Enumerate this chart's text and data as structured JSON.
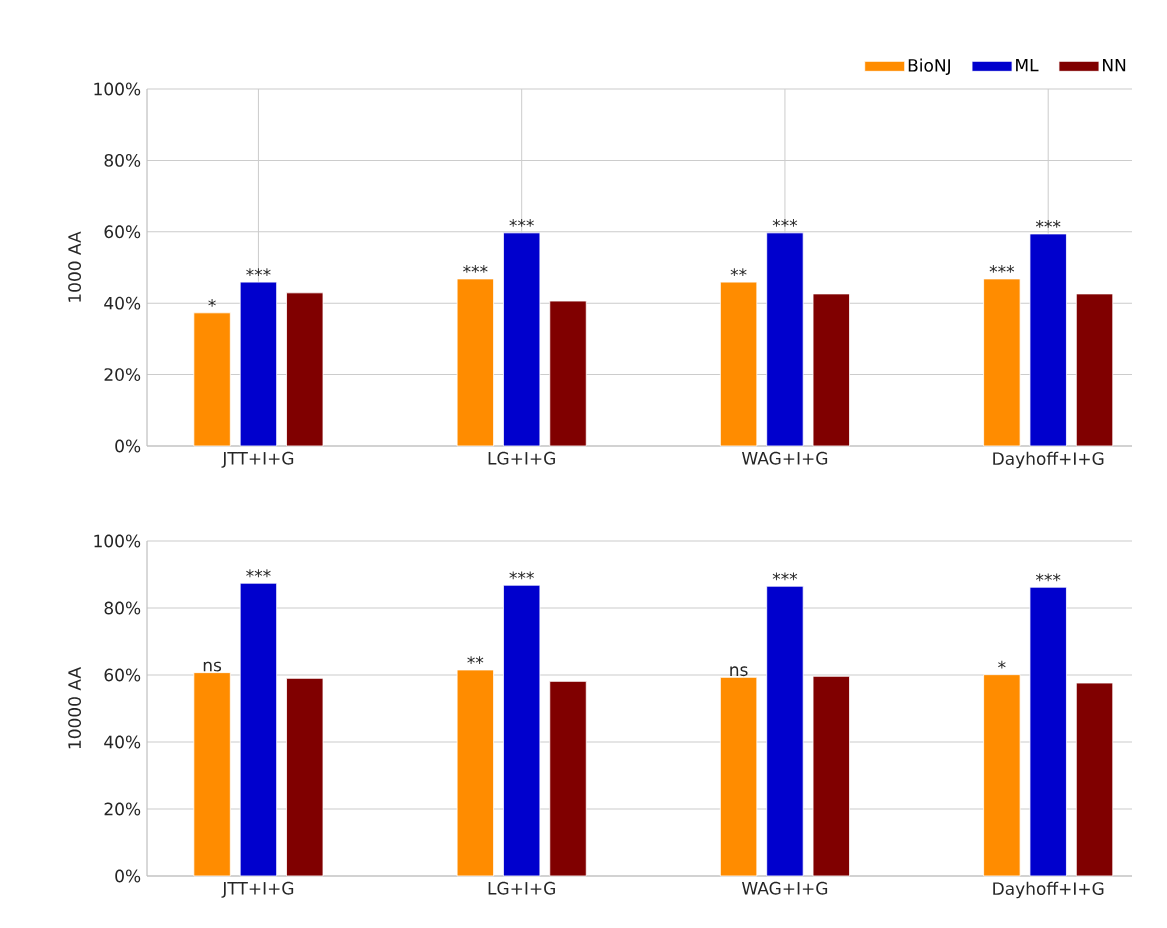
{
  "chart_data": [
    {
      "type": "bar",
      "ylabel": "1000 AA",
      "categories": [
        "JTT+I+G",
        "LG+I+G",
        "WAG+I+G",
        "Dayhoff+I+G"
      ],
      "series": [
        {
          "name": "BioNJ",
          "color": "#ff8c00",
          "values": [
            37.3,
            46.8,
            45.9,
            46.8
          ]
        },
        {
          "name": "ML",
          "color": "#0000cd",
          "values": [
            45.9,
            59.7,
            59.7,
            59.4
          ]
        },
        {
          "name": "NN",
          "color": "#800000",
          "values": [
            42.9,
            40.6,
            42.6,
            42.6
          ]
        }
      ],
      "ylim": [
        0,
        100
      ],
      "yticks": [
        {
          "value": 0,
          "label": "0%"
        },
        {
          "value": 20,
          "label": "20%"
        },
        {
          "value": 40,
          "label": "40%"
        },
        {
          "value": 60,
          "label": "60%"
        },
        {
          "value": 80,
          "label": "80%"
        },
        {
          "value": 100,
          "label": "100%"
        }
      ],
      "grid": true,
      "legend": "top right",
      "annotations": [
        "*",
        "***",
        "***",
        "***",
        "**",
        "***",
        "***",
        "***"
      ]
    },
    {
      "type": "bar",
      "ylabel": "10000 AA",
      "categories": [
        "JTT+I+G",
        "LG+I+G",
        "WAG+I+G",
        "Dayhoff+I+G"
      ],
      "series": [
        {
          "color": "#ff8c00",
          "values": [
            60.7,
            61.5,
            59.3,
            60.1
          ]
        },
        {
          "color": "#0000cd",
          "values": [
            87.4,
            86.8,
            86.5,
            86.2
          ]
        },
        {
          "color": "#800000",
          "values": [
            59.0,
            58.1,
            59.6,
            57.6
          ]
        }
      ],
      "ylim": [
        0,
        100
      ],
      "yticks": [
        {
          "value": 0,
          "label": "0%"
        },
        {
          "value": 20,
          "label": "20%"
        },
        {
          "value": 40,
          "label": "40%"
        },
        {
          "value": 60,
          "label": "60%"
        },
        {
          "value": 80,
          "label": "80%"
        },
        {
          "value": 100,
          "label": "100%"
        }
      ],
      "grid": "y",
      "annotations": [
        "ns",
        "***",
        "**",
        "***",
        "ns",
        "***",
        "*",
        "***"
      ]
    }
  ]
}
